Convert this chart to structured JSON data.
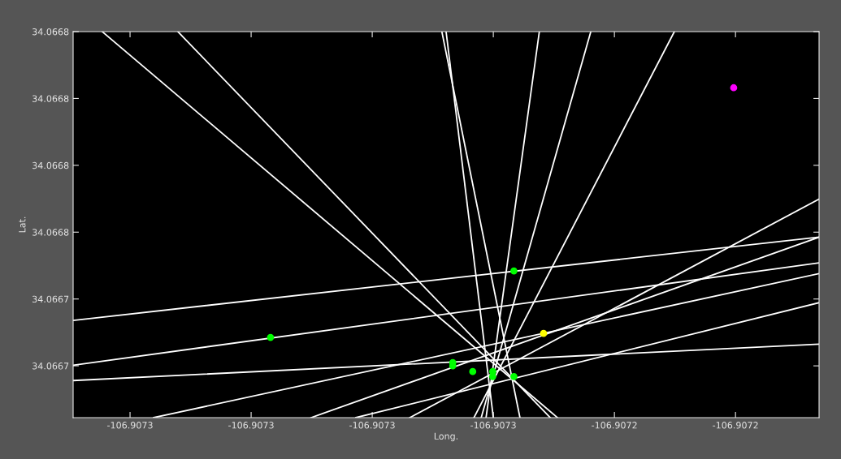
{
  "chart_data": {
    "type": "scatter",
    "xlabel": "Long.",
    "ylabel": "Lat.",
    "xlim": [
      -106.9073294,
      -106.9072062
    ],
    "ylim": [
      34.0667045,
      34.06682
    ],
    "xticks": [
      {
        "value": -106.90732,
        "label": "-106.9073"
      },
      {
        "value": -106.9073,
        "label": "-106.9073"
      },
      {
        "value": -106.90728,
        "label": "-106.9073"
      },
      {
        "value": -106.90726,
        "label": "-106.9073"
      },
      {
        "value": -106.90724,
        "label": "-106.9072"
      },
      {
        "value": -106.90722,
        "label": "-106.9072"
      }
    ],
    "yticks": [
      {
        "value": 34.06672,
        "label": "34.0667"
      },
      {
        "value": 34.06674,
        "label": "34.0667"
      },
      {
        "value": 34.06676,
        "label": "34.0668"
      },
      {
        "value": 34.06678,
        "label": "34.0668"
      },
      {
        "value": 34.0668,
        "label": "34.0668"
      },
      {
        "value": 34.06682,
        "label": "34.0668"
      }
    ],
    "grid": false,
    "legend": false,
    "line_style": "solid",
    "series": [
      {
        "type": "line",
        "color": "#ffffff",
        "x": [
          -106.9073246,
          -106.9072494
        ],
        "values": [
          34.06682,
          34.0667045
        ]
      },
      {
        "type": "line",
        "color": "#ffffff",
        "x": [
          -106.9073121,
          -106.9072506
        ],
        "values": [
          34.06682,
          34.0667045
        ]
      },
      {
        "type": "line",
        "color": "#ffffff",
        "x": [
          -106.9072685,
          -106.9072556
        ],
        "values": [
          34.06682,
          34.0667045
        ]
      },
      {
        "type": "line",
        "color": "#ffffff",
        "x": [
          -106.9072678,
          -106.90726
        ],
        "values": [
          34.06682,
          34.0667045
        ]
      },
      {
        "type": "line",
        "color": "#ffffff",
        "x": [
          -106.9072524,
          -106.9072612
        ],
        "values": [
          34.06682,
          34.0667045
        ]
      },
      {
        "type": "line",
        "color": "#ffffff",
        "x": [
          -106.9072439,
          -106.907262
        ],
        "values": [
          34.06682,
          34.0667045
        ]
      },
      {
        "type": "line",
        "color": "#ffffff",
        "x": [
          -106.9072301,
          -106.9072632
        ],
        "values": [
          34.06682,
          34.0667045
        ]
      },
      {
        "type": "line",
        "color": "#ffffff",
        "x": [
          -106.9073294,
          -106.9072062
        ],
        "values": [
          34.0667336,
          34.0667585
        ]
      },
      {
        "type": "line",
        "color": "#ffffff",
        "x": [
          -106.9073294,
          -106.9072062
        ],
        "values": [
          34.0667202,
          34.0667508
        ]
      },
      {
        "type": "line",
        "color": "#ffffff",
        "x": [
          -106.9073294,
          -106.9072062
        ],
        "values": [
          34.0667156,
          34.0667265
        ]
      },
      {
        "type": "line",
        "color": "#ffffff",
        "x": [
          -106.9073161,
          -106.9072062
        ],
        "values": [
          34.0667045,
          34.0667476
        ]
      },
      {
        "type": "line",
        "color": "#ffffff",
        "x": [
          -106.9072901,
          -106.9072062
        ],
        "values": [
          34.0667045,
          34.0667585
        ]
      },
      {
        "type": "line",
        "color": "#ffffff",
        "x": [
          -106.9072827,
          -106.9072062
        ],
        "values": [
          34.0667045,
          34.0667389
        ]
      },
      {
        "type": "line",
        "color": "#ffffff",
        "x": [
          -106.9072738,
          -106.9072062
        ],
        "values": [
          34.0667045,
          34.0667699
        ]
      },
      {
        "marker": "circle",
        "color": "#00ff00",
        "x": [
          -106.9072968,
          -106.9072667,
          -106.9072667,
          -106.9072634,
          -106.9072601,
          -106.9072601,
          -106.9072566,
          -106.9072566
        ],
        "values": [
          34.0667285,
          34.066721,
          34.06672,
          34.0667183,
          34.0667183,
          34.0667168,
          34.0667484,
          34.0667168
        ]
      },
      {
        "marker": "circle",
        "color": "#ffff00",
        "x": [
          -106.9072517
        ],
        "values": [
          34.0667297
        ]
      },
      {
        "marker": "circle",
        "color": "#ff00ff",
        "x": [
          -106.9072203
        ],
        "values": [
          34.0668032
        ]
      }
    ]
  }
}
